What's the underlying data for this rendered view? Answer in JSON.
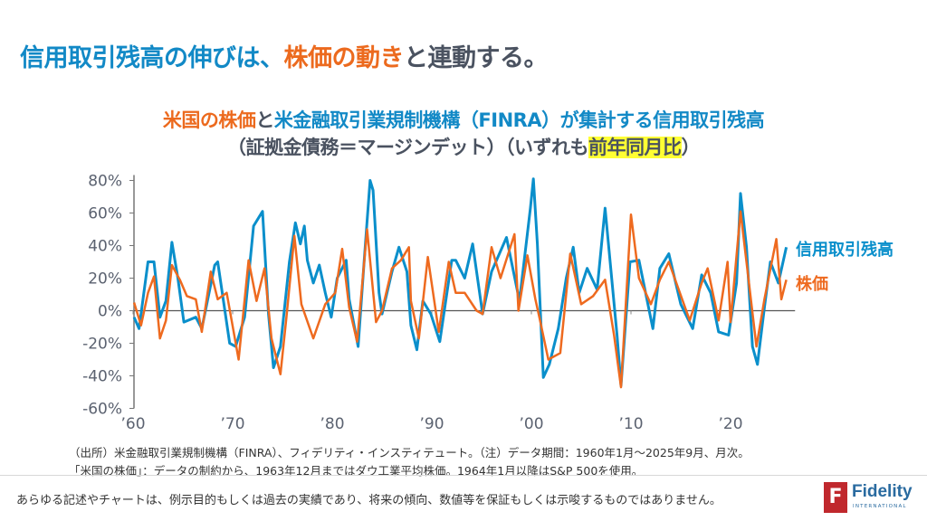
{
  "title": {
    "part1": "信用取引残高の伸びは、",
    "part2": "株価の動き",
    "part3": "と連動する。"
  },
  "subtitle": {
    "line1_a": "米国の株価",
    "line1_b": "と",
    "line1_c": "米金融取引業規制機構（FINRA）が集計する信用取引残高",
    "line2_a": "（証拠金債務＝マージンデット）（いずれも",
    "line2_b": "前年同月比",
    "line2_c": "）"
  },
  "chart_data": {
    "type": "line",
    "xlabel": "",
    "ylabel": "",
    "xlim": [
      1960,
      2025.75
    ],
    "ylim": [
      -60,
      80
    ],
    "yticks": [
      "80%",
      "60%",
      "40%",
      "20%",
      "0%",
      "-20%",
      "-40%",
      "-60%"
    ],
    "ytick_values": [
      80,
      60,
      40,
      20,
      0,
      -20,
      -40,
      -60
    ],
    "xticks": [
      "’60",
      "’70",
      "’80",
      "’90",
      "’00",
      "’10",
      "’20"
    ],
    "xtick_values": [
      1960,
      1970,
      1980,
      1990,
      2000,
      2010,
      2020
    ],
    "legend": "right-end labels",
    "series": [
      {
        "name": "信用取引残高",
        "color": "#0a8fcb",
        "points": [
          [
            1960.1,
            -4
          ],
          [
            1960.6,
            -11
          ],
          [
            1961.5,
            30
          ],
          [
            1962.1,
            30
          ],
          [
            1962.7,
            -4
          ],
          [
            1963.3,
            6
          ],
          [
            1963.9,
            42
          ],
          [
            1964.5,
            20
          ],
          [
            1965.1,
            -7
          ],
          [
            1966.3,
            -4
          ],
          [
            1966.9,
            -11
          ],
          [
            1968.2,
            28
          ],
          [
            1968.5,
            30
          ],
          [
            1969.7,
            -20
          ],
          [
            1970.3,
            -22
          ],
          [
            1971.2,
            -4
          ],
          [
            1972.1,
            52
          ],
          [
            1973.0,
            61
          ],
          [
            1973.6,
            -2
          ],
          [
            1974.1,
            -35
          ],
          [
            1974.8,
            -22
          ],
          [
            1975.7,
            30
          ],
          [
            1976.3,
            54
          ],
          [
            1976.8,
            41
          ],
          [
            1977.2,
            52
          ],
          [
            1977.5,
            31
          ],
          [
            1978.1,
            17
          ],
          [
            1978.7,
            28
          ],
          [
            1979.3,
            11
          ],
          [
            1979.9,
            -4
          ],
          [
            1980.5,
            20
          ],
          [
            1981.4,
            31
          ],
          [
            1981.7,
            7
          ],
          [
            1982.6,
            -22
          ],
          [
            1983.2,
            30
          ],
          [
            1983.8,
            80
          ],
          [
            1984.1,
            74
          ],
          [
            1984.7,
            11
          ],
          [
            1985.0,
            -2
          ],
          [
            1986.0,
            24
          ],
          [
            1986.7,
            39
          ],
          [
            1987.5,
            24
          ],
          [
            1987.9,
            -9
          ],
          [
            1988.5,
            -24
          ],
          [
            1989.1,
            6
          ],
          [
            1989.9,
            -2
          ],
          [
            1990.8,
            -19
          ],
          [
            1992.0,
            31
          ],
          [
            1992.4,
            31
          ],
          [
            1993.3,
            20
          ],
          [
            1994.1,
            41
          ],
          [
            1995.1,
            -2
          ],
          [
            1996.0,
            24
          ],
          [
            1997.5,
            45
          ],
          [
            1998.8,
            6
          ],
          [
            1999.9,
            63
          ],
          [
            2000.2,
            81
          ],
          [
            2000.6,
            41
          ],
          [
            2001.2,
            -41
          ],
          [
            2001.8,
            -33
          ],
          [
            2002.7,
            -11
          ],
          [
            2003.5,
            20
          ],
          [
            2004.2,
            39
          ],
          [
            2004.8,
            11
          ],
          [
            2005.6,
            26
          ],
          [
            2006.6,
            13
          ],
          [
            2007.4,
            63
          ],
          [
            2007.8,
            37
          ],
          [
            2008.6,
            -15
          ],
          [
            2009.0,
            -46
          ],
          [
            2009.9,
            30
          ],
          [
            2010.8,
            31
          ],
          [
            2012.2,
            -11
          ],
          [
            2012.9,
            26
          ],
          [
            2013.8,
            35
          ],
          [
            2015.0,
            4
          ],
          [
            2016.2,
            -11
          ],
          [
            2017.1,
            22
          ],
          [
            2018.0,
            11
          ],
          [
            2018.8,
            -13
          ],
          [
            2019.8,
            -15
          ],
          [
            2020.6,
            17
          ],
          [
            2021.0,
            72
          ],
          [
            2021.6,
            39
          ],
          [
            2022.2,
            -22
          ],
          [
            2022.7,
            -33
          ],
          [
            2023.4,
            2
          ],
          [
            2024.0,
            30
          ],
          [
            2024.8,
            17
          ],
          [
            2025.6,
            39
          ]
        ]
      },
      {
        "name": "株価",
        "color": "#ee6a1f",
        "points": [
          [
            1960.1,
            5
          ],
          [
            1960.8,
            -9
          ],
          [
            1961.5,
            11
          ],
          [
            1962.1,
            21
          ],
          [
            1962.7,
            -17
          ],
          [
            1963.3,
            -6
          ],
          [
            1963.9,
            28
          ],
          [
            1964.7,
            19
          ],
          [
            1965.4,
            9
          ],
          [
            1966.3,
            7
          ],
          [
            1966.9,
            -13
          ],
          [
            1967.8,
            24
          ],
          [
            1968.5,
            7
          ],
          [
            1969.4,
            11
          ],
          [
            1970.6,
            -30
          ],
          [
            1971.6,
            31
          ],
          [
            1972.4,
            6
          ],
          [
            1973.2,
            26
          ],
          [
            1973.9,
            -17
          ],
          [
            1974.8,
            -39
          ],
          [
            1975.4,
            -4
          ],
          [
            1976.2,
            46
          ],
          [
            1976.9,
            4
          ],
          [
            1978.1,
            -17
          ],
          [
            1979.3,
            4
          ],
          [
            1980.3,
            11
          ],
          [
            1981.0,
            38
          ],
          [
            1981.7,
            2
          ],
          [
            1982.5,
            -19
          ],
          [
            1983.5,
            50
          ],
          [
            1984.4,
            -7
          ],
          [
            1985.0,
            0
          ],
          [
            1986.0,
            26
          ],
          [
            1986.9,
            31
          ],
          [
            1987.7,
            39
          ],
          [
            1987.9,
            6
          ],
          [
            1988.7,
            -17
          ],
          [
            1989.6,
            33
          ],
          [
            1990.7,
            -13
          ],
          [
            1991.7,
            30
          ],
          [
            1992.4,
            11
          ],
          [
            1993.3,
            11
          ],
          [
            1994.5,
            0
          ],
          [
            1995.1,
            -2
          ],
          [
            1996.0,
            39
          ],
          [
            1996.9,
            20
          ],
          [
            1998.3,
            47
          ],
          [
            1998.7,
            0
          ],
          [
            1999.6,
            34
          ],
          [
            2000.4,
            7
          ],
          [
            2000.8,
            -4
          ],
          [
            2001.7,
            -30
          ],
          [
            2002.9,
            -26
          ],
          [
            2003.9,
            35
          ],
          [
            2005.0,
            4
          ],
          [
            2006.2,
            9
          ],
          [
            2007.4,
            19
          ],
          [
            2008.3,
            -15
          ],
          [
            2009.0,
            -47
          ],
          [
            2010.0,
            59
          ],
          [
            2010.8,
            20
          ],
          [
            2012.0,
            4
          ],
          [
            2012.9,
            19
          ],
          [
            2013.8,
            30
          ],
          [
            2015.9,
            -6
          ],
          [
            2017.1,
            17
          ],
          [
            2017.7,
            26
          ],
          [
            2018.8,
            -6
          ],
          [
            2019.7,
            30
          ],
          [
            2020.0,
            -7
          ],
          [
            2021.0,
            61
          ],
          [
            2022.6,
            -22
          ],
          [
            2023.4,
            7
          ],
          [
            2024.6,
            44
          ],
          [
            2025.1,
            7
          ],
          [
            2025.6,
            19
          ]
        ]
      }
    ]
  },
  "notes": {
    "line1": "（出所）米金融取引業規制機構（FINRA）、フィデリティ・インスティテュート。（注）データ期間：1960年1月～2025年9月、月次。",
    "line2": "「米国の株価」：データの制約から、1963年12月まではダウ工業平均株価。1964年1月以降はS&P 500を使用。"
  },
  "disclaimer": "あらゆる記述やチャートは、例示目的もしくは過去の実績であり、将来の傾向、数値等を保証もしくは示唆するものではありません。",
  "logo": {
    "mark": "F",
    "name": "Fidelity",
    "sub": "INTERNATIONAL"
  }
}
